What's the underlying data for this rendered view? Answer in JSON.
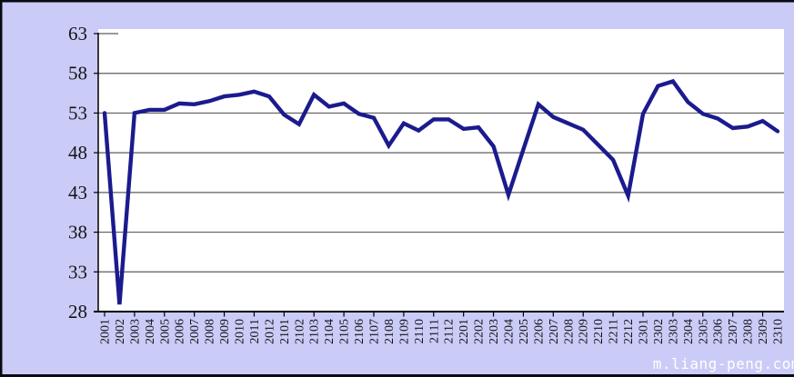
{
  "watermark": "m.liang-peng.com",
  "colors": {
    "canvas_bg": "#cbcbf8",
    "plot_bg": "#ffffff",
    "frame": "#0a0a14",
    "line": "#1b1b8e",
    "gridline": "#5e5e5e",
    "axis": "#000000",
    "tick_label": "#141414",
    "watermark": "#ffffff"
  },
  "chart_data": {
    "type": "line",
    "title": "",
    "xlabel": "",
    "ylabel": "",
    "ylim": [
      28,
      63
    ],
    "yticks": [
      28,
      33,
      38,
      43,
      48,
      53,
      58,
      63
    ],
    "grid": true,
    "legend": false,
    "categories": [
      "2001",
      "2002",
      "2003",
      "2004",
      "2005",
      "2006",
      "2007",
      "2008",
      "2009",
      "2010",
      "2011",
      "2012",
      "2101",
      "2102",
      "2103",
      "2104",
      "2105",
      "2106",
      "2107",
      "2108",
      "2109",
      "2110",
      "2111",
      "2112",
      "2201",
      "2202",
      "2203",
      "2204",
      "2205",
      "2206",
      "2207",
      "2208",
      "2209",
      "2210",
      "2211",
      "2212",
      "2301",
      "2302",
      "2303",
      "2304",
      "2305",
      "2306",
      "2307",
      "2308",
      "2309",
      "2310"
    ],
    "series": [
      {
        "name": "",
        "values": [
          53.0,
          28.9,
          53.0,
          53.4,
          53.4,
          54.2,
          54.1,
          54.5,
          55.1,
          55.3,
          55.7,
          55.1,
          52.8,
          51.6,
          55.3,
          53.8,
          54.2,
          52.9,
          52.4,
          48.9,
          51.7,
          50.8,
          52.2,
          52.2,
          51.0,
          51.2,
          48.8,
          42.7,
          48.4,
          54.1,
          52.5,
          51.7,
          50.9,
          49.0,
          47.1,
          42.6,
          52.9,
          56.4,
          57.0,
          54.4,
          52.9,
          52.3,
          51.1,
          51.3,
          52.0,
          50.7
        ]
      }
    ]
  }
}
